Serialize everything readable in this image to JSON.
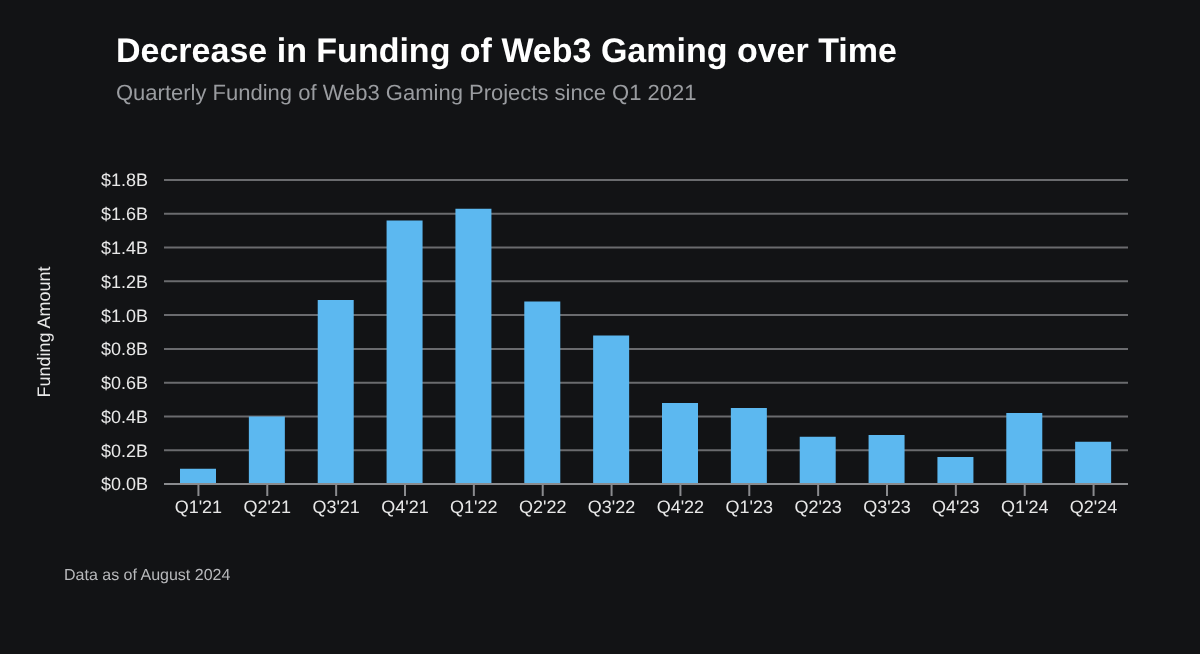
{
  "chart_data": {
    "type": "bar",
    "title": "Decrease in  Funding of Web3 Gaming over Time",
    "subtitle": "Quarterly Funding of Web3 Gaming Projects since Q1 2021",
    "ylabel": "Funding Amount",
    "categories": [
      "Q1'21",
      "Q2'21",
      "Q3'21",
      "Q4'21",
      "Q1'22",
      "Q2'22",
      "Q3'22",
      "Q4'22",
      "Q1'23",
      "Q2'23",
      "Q3'23",
      "Q4'23",
      "Q1'24",
      "Q2'24"
    ],
    "values": [
      0.09,
      0.4,
      1.09,
      1.56,
      1.63,
      1.08,
      0.88,
      0.48,
      0.45,
      0.28,
      0.29,
      0.16,
      0.42,
      0.25
    ],
    "color": "#5cb8f0",
    "ylim": [
      0,
      1.8
    ],
    "yticks": [
      {
        "value": 0,
        "label": "$0.0B"
      },
      {
        "value": 0.2,
        "label": "$0.2B"
      },
      {
        "value": 0.4,
        "label": "$0.4B"
      },
      {
        "value": 0.6,
        "label": "$0.6B"
      },
      {
        "value": 0.8,
        "label": "$0.8B"
      },
      {
        "value": 1.0,
        "label": "$1.0B"
      },
      {
        "value": 1.2,
        "label": "$1.2B"
      },
      {
        "value": 1.4,
        "label": "$1.4B"
      },
      {
        "value": 1.6,
        "label": "$1.6B"
      },
      {
        "value": 1.8,
        "label": "$1.8B"
      }
    ],
    "grid": "y",
    "annotations": [
      "Data as of August 2024"
    ]
  }
}
